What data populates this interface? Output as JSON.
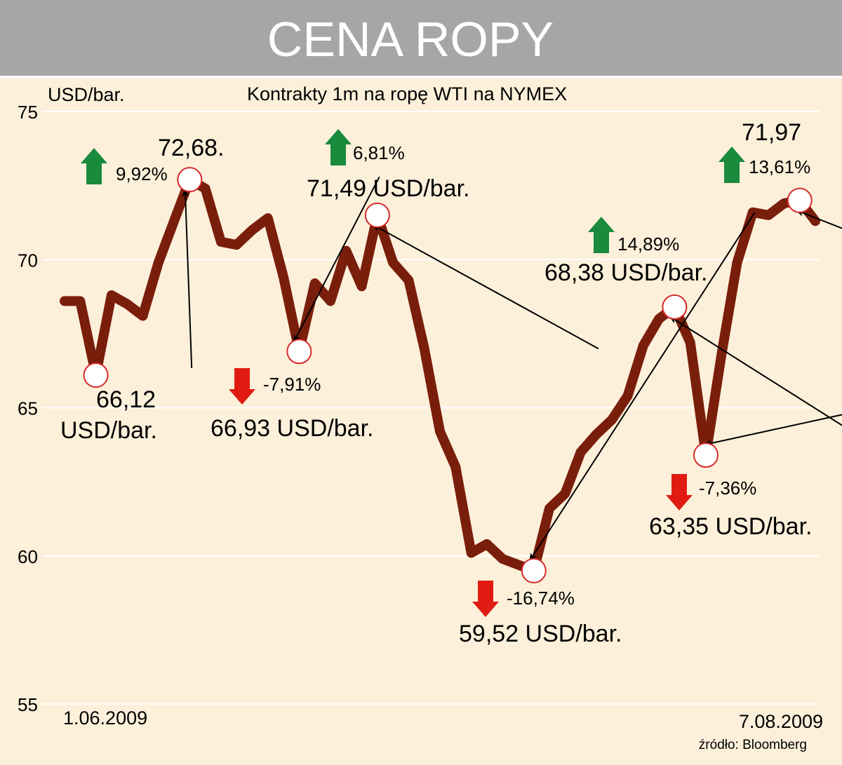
{
  "header": {
    "title": "CENA ROPY"
  },
  "colors": {
    "background": "#fdf0da",
    "header": "#a6a6a6",
    "line": "#7a1e0c",
    "circle": "#d42a2a",
    "up": "#1a8a3c",
    "down": "#e01c12"
  },
  "chart_data": {
    "type": "line",
    "title": "Kontrakty 1m na ropę WTI na NYMEX",
    "ylabel": "USD/bar.",
    "ylim": [
      55,
      75
    ],
    "yticks": [
      "55",
      "60",
      "65",
      "70",
      "75"
    ],
    "grid": true,
    "x_start_label": "1.06.2009",
    "x_end_label": "7.08.2009",
    "source": "źródło: Bloomberg",
    "series": [
      {
        "values": [
          68.6,
          68.6,
          66.1,
          68.8,
          68.5,
          68.1,
          69.9,
          71.3,
          72.7,
          72.4,
          70.6,
          70.5,
          71.0,
          71.4,
          69.4,
          66.9,
          69.2,
          68.6,
          70.3,
          69.1,
          71.5,
          69.9,
          69.3,
          67.0,
          64.2,
          63.0,
          60.1,
          60.4,
          59.9,
          59.7,
          59.5,
          61.6,
          62.1,
          63.5,
          64.1,
          64.6,
          65.4,
          67.1,
          68.0,
          68.4,
          67.2,
          63.4,
          66.8,
          69.9,
          71.6,
          71.5,
          71.9,
          72.0,
          71.3
        ]
      }
    ],
    "annotations": [
      {
        "index": 2,
        "value_label": "66,12",
        "unit_label": "USD/bar."
      },
      {
        "index": 8,
        "value_label": "72,68.",
        "change": "9,92%",
        "direction": "up"
      },
      {
        "index": 15,
        "value_label": "66,93 USD/bar.",
        "change": "-7,91%",
        "direction": "down"
      },
      {
        "index": 20,
        "value_label": "71,49 USD/bar.",
        "change": "6,81%",
        "direction": "up"
      },
      {
        "index": 30,
        "value_label": "59,52 USD/bar.",
        "change": "-16,74%",
        "direction": "down"
      },
      {
        "index": 39,
        "value_label": "68,38 USD/bar.",
        "change": "14,89%",
        "direction": "up"
      },
      {
        "index": 41,
        "value_label": "63,35 USD/bar.",
        "change": "-7,36%",
        "direction": "down"
      },
      {
        "index": 47,
        "value_label": "71,97",
        "change": "13,61%",
        "direction": "up"
      }
    ]
  }
}
